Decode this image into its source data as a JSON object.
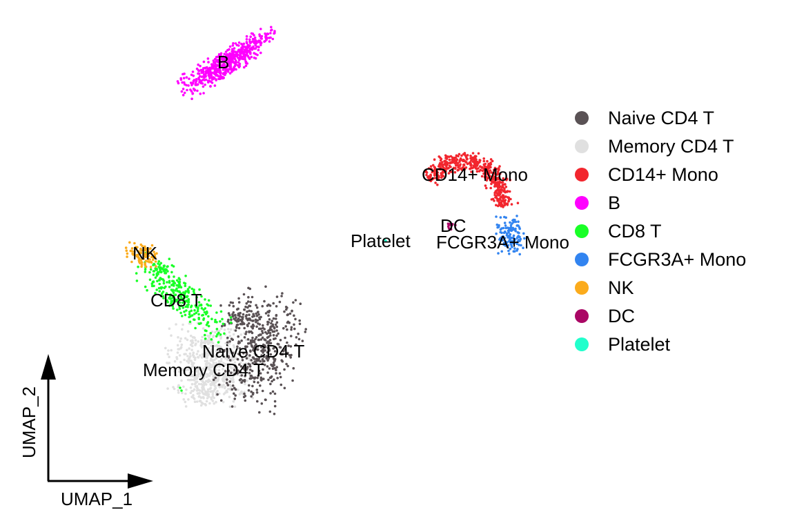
{
  "chart_data": {
    "type": "scatter",
    "xlabel": "UMAP_1",
    "ylabel": "UMAP_2",
    "grid": false,
    "legend_position": "right",
    "clusters": [
      {
        "name": "Naive CD4 T",
        "color": "#5a5255",
        "label": "Naive CD4 T"
      },
      {
        "name": "Memory CD4 T",
        "color": "#e0e0e0",
        "label": "Memory CD4 T"
      },
      {
        "name": "CD14+ Mono",
        "color": "#f2262e",
        "label": "CD14+ Mono"
      },
      {
        "name": "B",
        "color": "#ff00ff",
        "label": "B"
      },
      {
        "name": "CD8 T",
        "color": "#19ff27",
        "label": "CD8 T"
      },
      {
        "name": "FCGR3A+ Mono",
        "color": "#3284f0",
        "label": "FCGR3A+ Mono"
      },
      {
        "name": "NK",
        "color": "#fbab1c",
        "label": "NK"
      },
      {
        "name": "DC",
        "color": "#aa0765",
        "label": "DC"
      },
      {
        "name": "Platelet",
        "color": "#21ffcc",
        "label": "Platelet"
      }
    ]
  }
}
